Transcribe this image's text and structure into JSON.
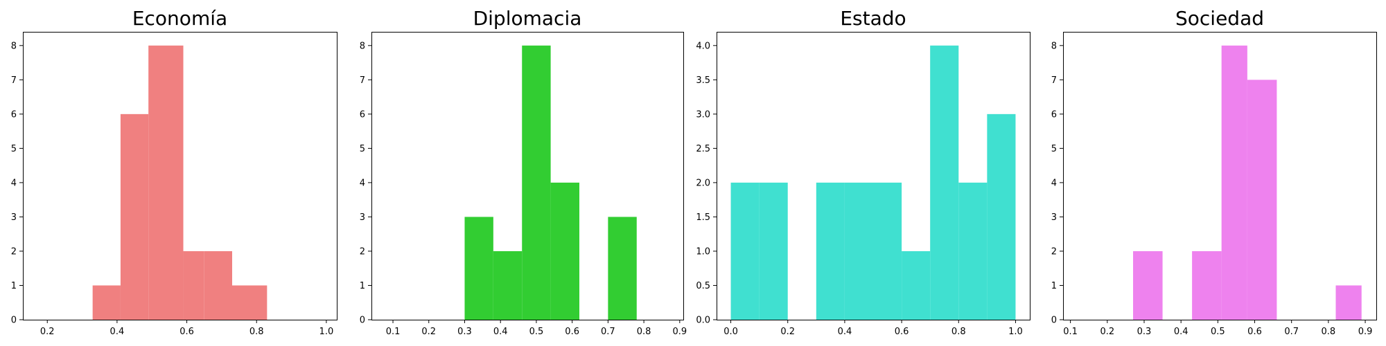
{
  "chart_data": [
    {
      "type": "bar",
      "subtype": "histogram",
      "title": "Economía",
      "color": "#f08080",
      "xlim": [
        0.13,
        1.03
      ],
      "ylim": [
        0,
        8.4
      ],
      "xticks": [
        0.2,
        0.4,
        0.6,
        0.8,
        1.0
      ],
      "xtick_labels": [
        "0.2",
        "0.4",
        "0.6",
        "0.8",
        "1.0"
      ],
      "yticks": [
        0,
        1,
        2,
        3,
        4,
        5,
        6,
        7,
        8
      ],
      "ytick_labels": [
        "0",
        "1",
        "2",
        "3",
        "4",
        "5",
        "6",
        "7",
        "8"
      ],
      "bins": [
        {
          "x0": 0.33,
          "x1": 0.41,
          "value": 1
        },
        {
          "x0": 0.41,
          "x1": 0.49,
          "value": 6
        },
        {
          "x0": 0.49,
          "x1": 0.59,
          "value": 8
        },
        {
          "x0": 0.59,
          "x1": 0.65,
          "value": 2
        },
        {
          "x0": 0.65,
          "x1": 0.73,
          "value": 2
        },
        {
          "x0": 0.73,
          "x1": 0.83,
          "value": 1
        }
      ],
      "grid": false,
      "xlabel": "",
      "ylabel": ""
    },
    {
      "type": "bar",
      "subtype": "histogram",
      "title": "Diplomacia",
      "color": "#32cd32",
      "xlim": [
        0.04,
        0.91
      ],
      "ylim": [
        0,
        8.4
      ],
      "xticks": [
        0.1,
        0.2,
        0.3,
        0.4,
        0.5,
        0.6,
        0.7,
        0.8,
        0.9
      ],
      "xtick_labels": [
        "0.1",
        "0.2",
        "0.3",
        "0.4",
        "0.5",
        "0.6",
        "0.7",
        "0.8",
        "0.9"
      ],
      "yticks": [
        0,
        1,
        2,
        3,
        4,
        5,
        6,
        7,
        8
      ],
      "ytick_labels": [
        "0",
        "1",
        "2",
        "3",
        "4",
        "5",
        "6",
        "7",
        "8"
      ],
      "bins": [
        {
          "x0": 0.3,
          "x1": 0.38,
          "value": 3
        },
        {
          "x0": 0.38,
          "x1": 0.46,
          "value": 2
        },
        {
          "x0": 0.46,
          "x1": 0.54,
          "value": 8
        },
        {
          "x0": 0.54,
          "x1": 0.62,
          "value": 4
        },
        {
          "x0": 0.7,
          "x1": 0.78,
          "value": 3
        }
      ],
      "grid": false,
      "xlabel": "",
      "ylabel": ""
    },
    {
      "type": "bar",
      "subtype": "histogram",
      "title": "Estado",
      "color": "#40e0d0",
      "xlim": [
        -0.05,
        1.05
      ],
      "ylim": [
        0,
        4.2
      ],
      "xticks": [
        0.0,
        0.2,
        0.4,
        0.6,
        0.8,
        1.0
      ],
      "xtick_labels": [
        "0.0",
        "0.2",
        "0.4",
        "0.6",
        "0.8",
        "1.0"
      ],
      "yticks": [
        0,
        0.5,
        1.0,
        1.5,
        2.0,
        2.5,
        3.0,
        3.5,
        4.0
      ],
      "ytick_labels": [
        "0.0",
        "0.5",
        "1.0",
        "1.5",
        "2.0",
        "2.5",
        "3.0",
        "3.5",
        "4.0"
      ],
      "bins": [
        {
          "x0": 0.0,
          "x1": 0.1,
          "value": 2
        },
        {
          "x0": 0.1,
          "x1": 0.2,
          "value": 2
        },
        {
          "x0": 0.3,
          "x1": 0.4,
          "value": 2
        },
        {
          "x0": 0.4,
          "x1": 0.5,
          "value": 2
        },
        {
          "x0": 0.5,
          "x1": 0.6,
          "value": 2
        },
        {
          "x0": 0.6,
          "x1": 0.7,
          "value": 1
        },
        {
          "x0": 0.7,
          "x1": 0.8,
          "value": 4
        },
        {
          "x0": 0.8,
          "x1": 0.9,
          "value": 2
        },
        {
          "x0": 0.9,
          "x1": 1.0,
          "value": 3
        }
      ],
      "grid": false,
      "xlabel": "",
      "ylabel": ""
    },
    {
      "type": "bar",
      "subtype": "histogram",
      "title": "Sociedad",
      "color": "#ee82ee",
      "xlim": [
        0.08,
        0.93
      ],
      "ylim": [
        0,
        8.4
      ],
      "xticks": [
        0.1,
        0.2,
        0.3,
        0.4,
        0.5,
        0.6,
        0.7,
        0.8,
        0.9
      ],
      "xtick_labels": [
        "0.1",
        "0.2",
        "0.3",
        "0.4",
        "0.5",
        "0.6",
        "0.7",
        "0.8",
        "0.9"
      ],
      "yticks": [
        0,
        1,
        2,
        3,
        4,
        5,
        6,
        7,
        8
      ],
      "ytick_labels": [
        "0",
        "1",
        "2",
        "3",
        "4",
        "5",
        "6",
        "7",
        "8"
      ],
      "bins": [
        {
          "x0": 0.27,
          "x1": 0.35,
          "value": 2
        },
        {
          "x0": 0.43,
          "x1": 0.51,
          "value": 2
        },
        {
          "x0": 0.51,
          "x1": 0.58,
          "value": 8
        },
        {
          "x0": 0.58,
          "x1": 0.66,
          "value": 7
        },
        {
          "x0": 0.82,
          "x1": 0.89,
          "value": 1
        }
      ],
      "grid": false,
      "xlabel": "",
      "ylabel": ""
    }
  ]
}
